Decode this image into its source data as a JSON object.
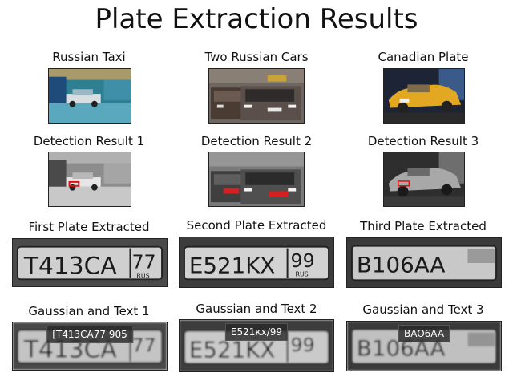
{
  "figure": {
    "title": "Plate Extraction Results"
  },
  "row1": [
    {
      "caption": "Russian Taxi"
    },
    {
      "caption": "Two Russian Cars"
    },
    {
      "caption": "Canadian Plate"
    }
  ],
  "row2": [
    {
      "caption": "Detection Result 1"
    },
    {
      "caption": "Detection Result 2"
    },
    {
      "caption": "Detection Result 3"
    }
  ],
  "row3": [
    {
      "caption": "First Plate Extracted",
      "plate_main": "T413CA",
      "plate_region": "77",
      "plate_rus": "RUS"
    },
    {
      "caption": "Second Plate Extracted",
      "plate_main": "E521KX",
      "plate_region": "99",
      "plate_rus": "RUS"
    },
    {
      "caption": "Third Plate Extracted",
      "plate_main": "B106AA",
      "plate_region": "",
      "plate_rus": ""
    }
  ],
  "row4": [
    {
      "caption": "Gaussian and Text 1",
      "ocr_text": "[T413CA77 905",
      "plate_main": "T413CA",
      "plate_region": "77"
    },
    {
      "caption": "Gaussian and Text 2",
      "ocr_text": "E521кх/99",
      "plate_main": "E521KX",
      "plate_region": "99"
    },
    {
      "caption": "Gaussian and Text 3",
      "ocr_text": "BAO6AA",
      "plate_main": "B106AA",
      "plate_region": ""
    }
  ]
}
